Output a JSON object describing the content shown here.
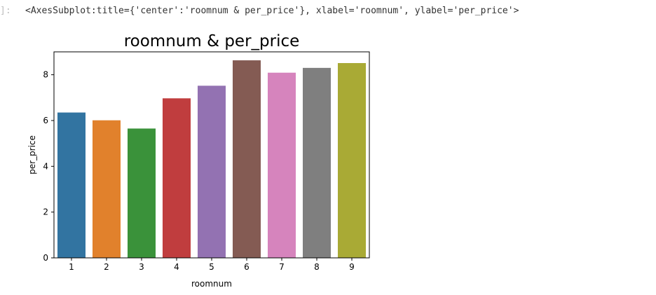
{
  "cell": {
    "prompt_label": "]:",
    "output_repr": "<AxesSubplot:title={'center':'roomnum & per_price'}, xlabel='roomnum', ylabel='per_price'>"
  },
  "chart_data": {
    "type": "bar",
    "title": "roomnum & per_price",
    "xlabel": "roomnum",
    "ylabel": "per_price",
    "categories": [
      "1",
      "2",
      "3",
      "4",
      "5",
      "6",
      "7",
      "8",
      "9"
    ],
    "values": [
      6.35,
      6.01,
      5.65,
      6.97,
      7.52,
      8.63,
      8.09,
      8.3,
      8.51
    ],
    "colors": [
      "#3274a1",
      "#e1812c",
      "#3a923a",
      "#c03d3e",
      "#9372b2",
      "#845b53",
      "#d684bd",
      "#7f7f7f",
      "#a9aa35"
    ],
    "ylim": [
      0,
      9.0
    ],
    "yticks": [
      0,
      2,
      4,
      6,
      8
    ],
    "grid": false,
    "legend": "none"
  }
}
